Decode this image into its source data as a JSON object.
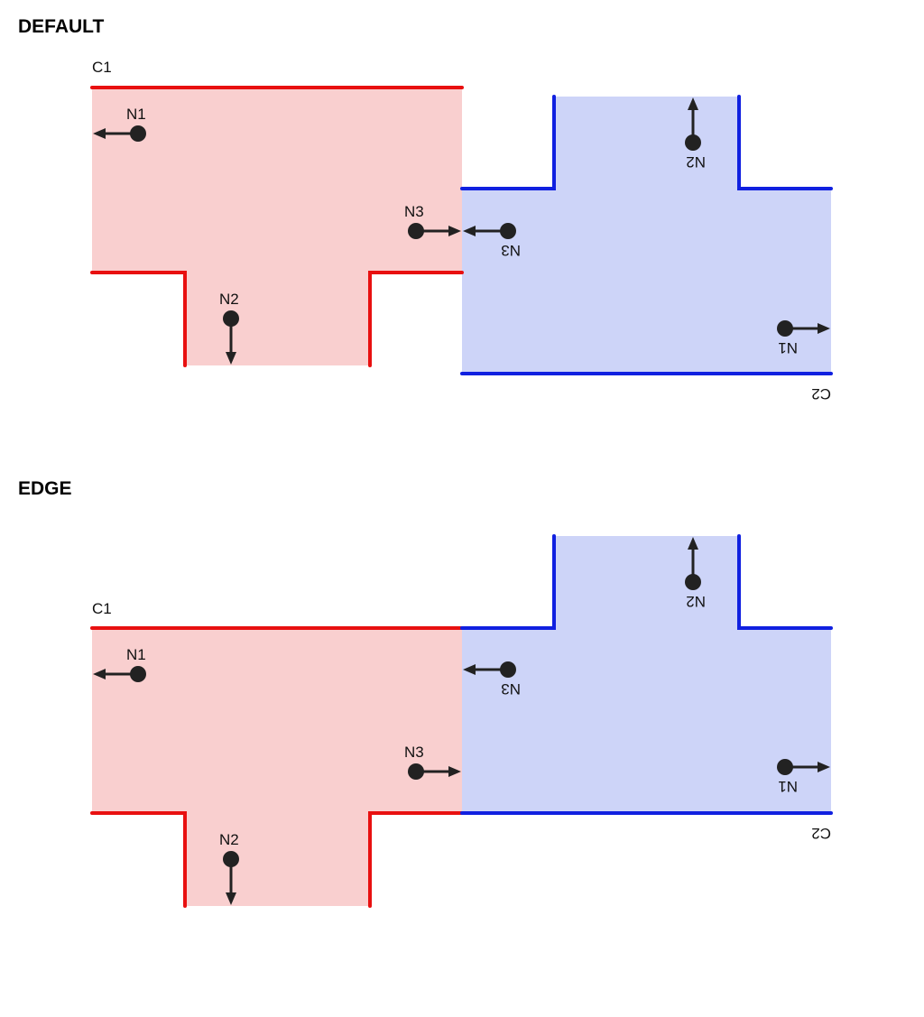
{
  "sections": [
    {
      "title": "DEFAULT"
    },
    {
      "title": "EDGE"
    }
  ],
  "component1": {
    "label": "C1",
    "color": "#e81010",
    "fill": "#f9cfcf",
    "nodes": {
      "n1": "N1",
      "n2": "N2",
      "n3": "N3"
    }
  },
  "component2": {
    "label": "C2",
    "color": "#1020e0",
    "fill": "#cdd4f8",
    "nodes": {
      "n1": "N1",
      "n2": "N2",
      "n3": "N3"
    }
  },
  "arrow_color": "#222222"
}
